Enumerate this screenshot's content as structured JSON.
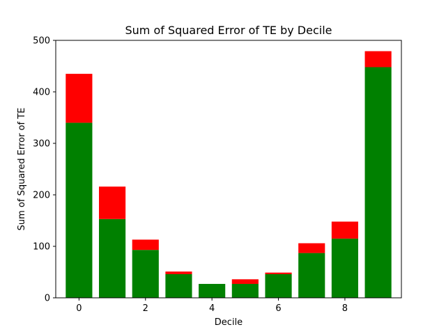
{
  "chart_data": {
    "type": "bar",
    "stacked": true,
    "title": "Sum of Squared Error of TE by Decile",
    "xlabel": "Decile",
    "ylabel": "Sum of Squared Error of TE",
    "x": [
      0,
      1,
      2,
      3,
      4,
      5,
      6,
      7,
      8,
      9
    ],
    "series": [
      {
        "color": "#008000",
        "values": [
          340,
          153,
          93,
          46,
          27,
          27,
          46,
          87,
          115,
          448
        ]
      },
      {
        "color": "#ff0000",
        "values": [
          95,
          63,
          20,
          5,
          0,
          9,
          3,
          19,
          33,
          31
        ]
      }
    ],
    "xlim": [
      -0.7,
      9.7
    ],
    "ylim": [
      0,
      500
    ],
    "xticks": [
      0,
      2,
      4,
      6,
      8
    ],
    "yticks": [
      0,
      100,
      200,
      300,
      400,
      500
    ],
    "grid": false
  }
}
